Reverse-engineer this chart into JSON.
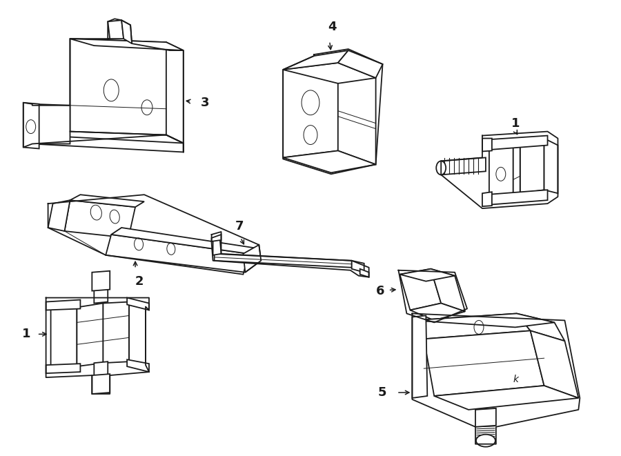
{
  "bg": "#ffffff",
  "lc": "#1a1a1a",
  "lw": 1.3,
  "tlw": 0.7,
  "fig_w": 9.0,
  "fig_h": 6.61,
  "dpi": 100
}
